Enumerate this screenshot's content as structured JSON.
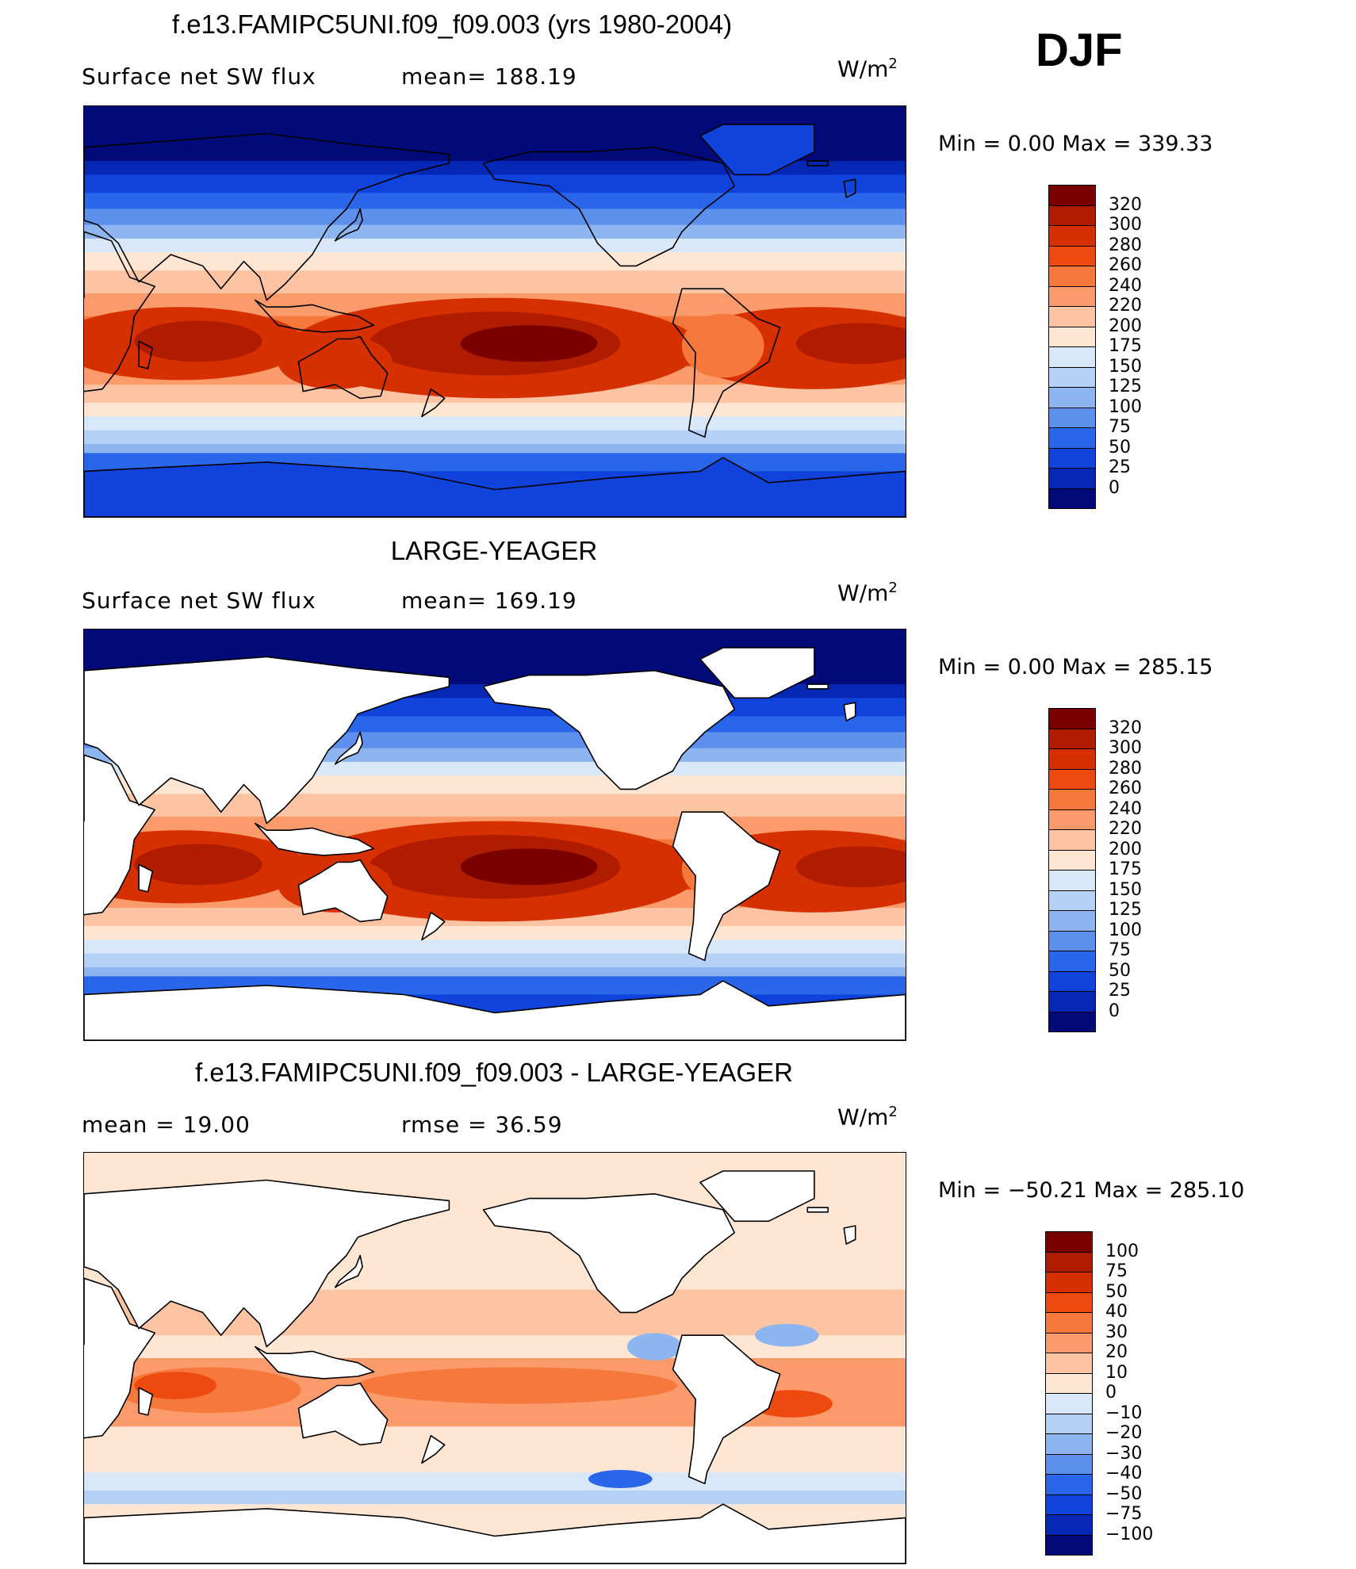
{
  "season": "DJF",
  "panels": [
    {
      "title": "f.e13.FAMIPC5UNI.f09_f09.003 (yrs 1980-2004)",
      "left_label": "Surface net SW flux",
      "center_label": "mean=  188.19",
      "units": "W/m",
      "units_sup": "2",
      "minmax": "Min  =      0.00  Max  =  339.33",
      "scheme": "abs",
      "mask_land": false
    },
    {
      "title": "LARGE-YEAGER",
      "left_label": "Surface net SW flux",
      "center_label": "mean=  169.19",
      "units": "W/m",
      "units_sup": "2",
      "minmax": "Min  =      0.00  Max  =  285.15",
      "scheme": "abs",
      "mask_land": true
    },
    {
      "title": "f.e13.FAMIPC5UNI.f09_f09.003 - LARGE-YEAGER",
      "left_label": "mean  =     19.00",
      "center_label": "rmse  =     36.59",
      "units": "W/m",
      "units_sup": "2",
      "minmax": "Min  =  −50.21  Max  =  285.10",
      "scheme": "diff",
      "mask_land": true
    }
  ],
  "colorbars": {
    "abs": {
      "labels": [
        "320",
        "300",
        "280",
        "260",
        "240",
        "220",
        "200",
        "175",
        "150",
        "125",
        "100",
        "75",
        "50",
        "25",
        "0"
      ],
      "colors": [
        "#7a0000",
        "#b01c00",
        "#d63000",
        "#ee4a10",
        "#f7783c",
        "#fb9a6a",
        "#fcc4a2",
        "#fee6d3",
        "#d8e8f9",
        "#b5d1f6",
        "#8db6f1",
        "#5c90ec",
        "#2a66ea",
        "#0f43dc",
        "#0528b4",
        "#020a7a"
      ]
    },
    "diff": {
      "labels": [
        "100",
        "75",
        "50",
        "40",
        "30",
        "20",
        "10",
        "0",
        "−10",
        "−20",
        "−30",
        "−40",
        "−50",
        "−75",
        "−100"
      ],
      "colors": [
        "#7a0000",
        "#b01c00",
        "#d63000",
        "#ee4a10",
        "#f7783c",
        "#fb9a6a",
        "#fcc4a2",
        "#fee6d3",
        "#d8e8f9",
        "#b5d1f6",
        "#8db6f1",
        "#5c90ec",
        "#2a66ea",
        "#0f43dc",
        "#0528b4",
        "#020a7a"
      ]
    }
  }
}
